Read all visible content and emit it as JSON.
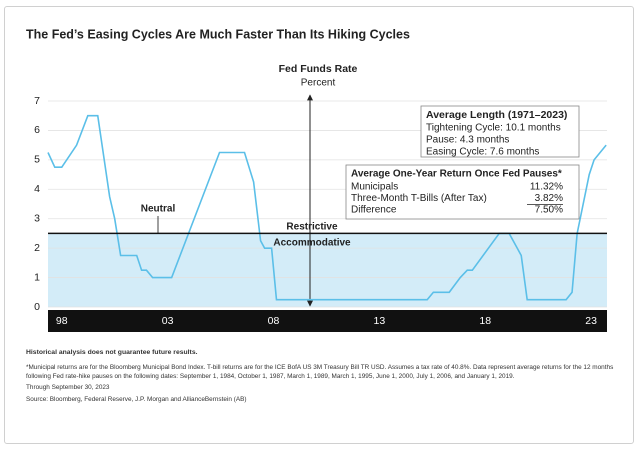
{
  "chart_data": {
    "type": "line",
    "title": "The Fed’s Easing Cycles Are Much Faster Than Its Hiking Cycles",
    "subtitle": "Fed Funds Rate",
    "y_label": "Percent",
    "x": [
      1997.35,
      1997.67,
      1998.0,
      1998.7,
      1999.23,
      1999.7,
      2000.26,
      2000.5,
      2000.78,
      2001.54,
      2001.77,
      2002.0,
      2002.29,
      2003.19,
      2005.45,
      2006.63,
      2007.06,
      2007.39,
      2007.58,
      2007.91,
      2008.14,
      2015.26,
      2015.55,
      2016.3,
      2016.82,
      2017.15,
      2017.39,
      2018.66,
      2019.13,
      2019.51,
      2019.7,
      2019.98,
      2021.82,
      2022.1,
      2022.34,
      2022.91,
      2023.14,
      2023.71
    ],
    "values": [
      5.25,
      4.75,
      4.75,
      5.5,
      6.5,
      6.5,
      3.75,
      3.0,
      1.75,
      1.75,
      1.25,
      1.25,
      1.0,
      1.0,
      5.25,
      5.25,
      4.25,
      2.25,
      2.0,
      2.0,
      0.25,
      0.25,
      0.5,
      0.5,
      1.0,
      1.25,
      1.25,
      2.5,
      2.5,
      2.0,
      1.75,
      0.25,
      0.25,
      0.5,
      2.5,
      4.5,
      5.0,
      5.5
    ],
    "color": "#5bbfe8",
    "xlim": [
      1997.35,
      2023.75
    ],
    "xticks": [
      {
        "value": 1998,
        "label": "98"
      },
      {
        "value": 2003,
        "label": "03"
      },
      {
        "value": 2008,
        "label": "08"
      },
      {
        "value": 2013,
        "label": "13"
      },
      {
        "value": 2018,
        "label": "18"
      },
      {
        "value": 2023,
        "label": "23"
      }
    ],
    "ylim": [
      0,
      7
    ],
    "yticks": [
      0,
      1,
      2,
      3,
      4,
      5,
      6,
      7
    ],
    "grid": true,
    "neutral_level": 2.5,
    "neutral_label": "Neutral",
    "upper_zone_label": "Restrictive",
    "lower_zone_label": "Accommodative",
    "length_box": {
      "title": "Average Length (1971–2023)",
      "lines": [
        "Tightening Cycle: 10.1 months",
        "Pause: 4.3 months",
        "Easing Cycle: 7.6 months"
      ]
    },
    "return_box": {
      "title": "Average One-Year Return Once Fed Pauses*",
      "rows": [
        [
          "Municipals",
          "11.32%"
        ],
        [
          "Three-Month T-Bills (After Tax)",
          "3.82%"
        ],
        [
          "Difference",
          "7.50%"
        ]
      ]
    }
  },
  "notes": {
    "disclaimer": "Historical analysis does not guarantee future results.",
    "footnote": "*Municipal returns are for the Bloomberg Municipal Bond Index. T-bill returns are for the ICE BofA US 3M Treasury Bill TR USD. Assumes a tax rate of 40.8%. Data represent average returns for the 12 months following Fed rate-hike pauses on the following dates: September 1, 1984, October 1, 1987, March 1, 1989, March 1, 1995, June 1, 2000, July 1, 2006, and January 1, 2019.",
    "through": "Through September 30, 2023",
    "source": "Source: Bloomberg, Federal Reserve, J.P. Morgan and AllianceBernstein (AB)"
  }
}
